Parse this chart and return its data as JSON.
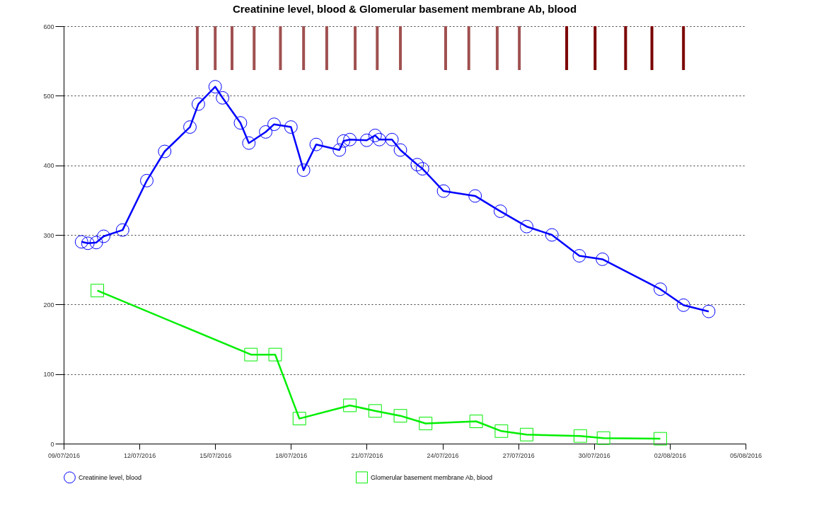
{
  "chart_data": {
    "type": "line",
    "title": "Creatinine level, blood & Glomerular basement membrane Ab, blood",
    "xlim": [
      "2016-07-09",
      "2016-08-05"
    ],
    "xticks": [
      {
        "value": "2016-07-09",
        "label": "09/07/2016"
      },
      {
        "value": "2016-07-12",
        "label": "12/07/2016"
      },
      {
        "value": "2016-07-15",
        "label": "15/07/2016"
      },
      {
        "value": "2016-07-18",
        "label": "18/07/2016"
      },
      {
        "value": "2016-07-21",
        "label": "21/07/2016"
      },
      {
        "value": "2016-07-24",
        "label": "24/07/2016"
      },
      {
        "value": "2016-07-27",
        "label": "27/07/2016"
      },
      {
        "value": "2016-07-30",
        "label": "30/07/2016"
      },
      {
        "value": "2016-08-02",
        "label": "02/08/2016"
      },
      {
        "value": "2016-08-05",
        "label": "05/08/2016"
      }
    ],
    "ylim": [
      0,
      600
    ],
    "yticks": [
      0,
      100,
      200,
      300,
      400,
      500,
      600
    ],
    "grid": "y",
    "legend": "bottom",
    "series": [
      {
        "name": "Creatinine level, blood",
        "color": "#0000ff",
        "marker": "circle",
        "x": [
          "2016-07-09T17:00",
          "2016-07-09T23:00",
          "2016-07-10T07:00",
          "2016-07-10T14:00",
          "2016-07-11T08:00",
          "2016-07-12T07:00",
          "2016-07-13T00:00",
          "2016-07-14T00:00",
          "2016-07-14T08:00",
          "2016-07-15T00:00",
          "2016-07-15T07:00",
          "2016-07-16T00:00",
          "2016-07-16T08:00",
          "2016-07-17T00:00",
          "2016-07-17T08:00",
          "2016-07-18T00:00",
          "2016-07-18T12:00",
          "2016-07-19T00:00",
          "2016-07-19T22:00",
          "2016-07-20T02:00",
          "2016-07-20T08:00",
          "2016-07-21T00:00",
          "2016-07-21T08:00",
          "2016-07-21T12:00",
          "2016-07-22T00:00",
          "2016-07-22T08:00",
          "2016-07-23T00:00",
          "2016-07-23T05:00",
          "2016-07-24T01:00",
          "2016-07-25T07:00",
          "2016-07-26T07:00",
          "2016-07-27T08:00",
          "2016-07-28T08:00",
          "2016-07-29T10:00",
          "2016-07-30T08:00",
          "2016-08-01T15:00",
          "2016-08-02T13:00",
          "2016-08-03T13:00"
        ],
        "values": [
          290,
          288,
          289,
          298,
          307,
          378,
          420,
          455,
          488,
          513,
          497,
          461,
          432,
          448,
          459,
          455,
          393,
          430,
          422,
          435,
          437,
          436,
          443,
          437,
          437,
          422,
          401,
          395,
          363,
          356,
          334,
          312,
          300,
          270,
          265,
          222,
          199,
          190
        ]
      },
      {
        "name": "Glomerular basement membrane Ab, blood",
        "color": "#00ee00",
        "marker": "square",
        "x": [
          "2016-07-10T08:00",
          "2016-07-16T10:00",
          "2016-07-17T09:00",
          "2016-07-18T08:00",
          "2016-07-20T08:00",
          "2016-07-21T08:00",
          "2016-07-22T08:00",
          "2016-07-23T08:00",
          "2016-07-25T08:00",
          "2016-07-26T08:00",
          "2016-07-27T08:00",
          "2016-07-29T11:00",
          "2016-07-30T09:00",
          "2016-08-01T15:00"
        ],
        "values": [
          220,
          128,
          128,
          36,
          55,
          47,
          40,
          29,
          32,
          18,
          13,
          11,
          8,
          7
        ]
      }
    ],
    "ref_lines": [
      {
        "axis": "x",
        "value": "2016-07-14T07:00",
        "color": "#a05050"
      },
      {
        "axis": "x",
        "value": "2016-07-15T00:00",
        "color": "#a05050"
      },
      {
        "axis": "x",
        "value": "2016-07-15T16:00",
        "color": "#a05050"
      },
      {
        "axis": "x",
        "value": "2016-07-16T13:00",
        "color": "#a05050"
      },
      {
        "axis": "x",
        "value": "2016-07-17T14:00",
        "color": "#a05050"
      },
      {
        "axis": "x",
        "value": "2016-07-18T12:00",
        "color": "#a05050"
      },
      {
        "axis": "x",
        "value": "2016-07-19T10:00",
        "color": "#a05050"
      },
      {
        "axis": "x",
        "value": "2016-07-20T13:00",
        "color": "#a05050"
      },
      {
        "axis": "x",
        "value": "2016-07-21T10:00",
        "color": "#a05050"
      },
      {
        "axis": "x",
        "value": "2016-07-22T08:00",
        "color": "#a05050"
      },
      {
        "axis": "x",
        "value": "2016-07-24T03:00",
        "color": "#a05050"
      },
      {
        "axis": "x",
        "value": "2016-07-25T01:00",
        "color": "#a05050"
      },
      {
        "axis": "x",
        "value": "2016-07-26T04:00",
        "color": "#a05050"
      },
      {
        "axis": "x",
        "value": "2016-07-27T01:00",
        "color": "#a05050"
      },
      {
        "axis": "x",
        "value": "2016-07-28T22:00",
        "color": "#7a0000"
      },
      {
        "axis": "x",
        "value": "2016-07-30T01:00",
        "color": "#7a0000"
      },
      {
        "axis": "x",
        "value": "2016-07-31T06:00",
        "color": "#7a0000"
      },
      {
        "axis": "x",
        "value": "2016-08-01T07:00",
        "color": "#7a0000"
      },
      {
        "axis": "x",
        "value": "2016-08-02T13:00",
        "color": "#7a0000"
      }
    ]
  }
}
